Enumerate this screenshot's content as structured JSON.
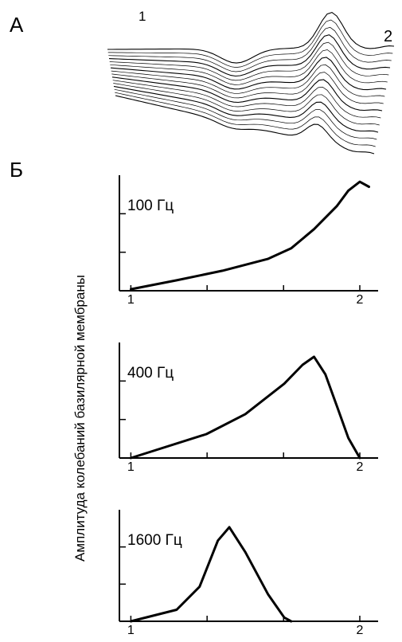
{
  "panel_a": {
    "label": "А",
    "start": "1",
    "end": "2"
  },
  "panel_b_label": "Б",
  "y_label": "Амплитуда колебаний базилярной мембраны",
  "chart_data": [
    {
      "type": "line",
      "annotation": "100 Гц",
      "color": "#000000",
      "x": [
        1,
        1.2,
        1.4,
        1.6,
        1.7,
        1.8,
        1.9,
        1.95,
        2.0,
        2.04
      ],
      "values": [
        0.04,
        0.27,
        0.52,
        0.83,
        1.1,
        1.6,
        2.2,
        2.6,
        2.83,
        2.7
      ],
      "xlim": [
        0.95,
        2.08
      ],
      "xticks": [
        1,
        2
      ],
      "xminor_ticks": [
        1.333,
        1.667
      ],
      "ylim": [
        0,
        3
      ],
      "yminor_ticks": [
        1,
        2
      ]
    },
    {
      "type": "line",
      "annotation": "400 Гц",
      "color": "#000000",
      "x": [
        1,
        1.33,
        1.5,
        1.67,
        1.75,
        1.8,
        1.85,
        1.9,
        1.95,
        2.0
      ],
      "values": [
        0,
        0.62,
        1.14,
        1.93,
        2.42,
        2.63,
        2.17,
        1.35,
        0.52,
        0
      ],
      "xlim": [
        0.95,
        2.08
      ],
      "xticks": [
        1,
        2
      ],
      "xminor_ticks": [
        1.333,
        1.667
      ],
      "ylim": [
        0,
        3
      ],
      "yminor_ticks": [
        1,
        2
      ]
    },
    {
      "type": "line",
      "annotation": "1600 Гц",
      "color": "#000000",
      "x": [
        1,
        1.2,
        1.3,
        1.38,
        1.43,
        1.5,
        1.6,
        1.67,
        1.7
      ],
      "values": [
        0,
        0.31,
        0.93,
        2.17,
        2.53,
        1.86,
        0.72,
        0.1,
        0
      ],
      "xlim": [
        0.95,
        2.08
      ],
      "xticks": [
        1,
        2
      ],
      "xminor_ticks": [
        1.333,
        1.667
      ],
      "ylim": [
        0,
        3
      ],
      "yminor_ticks": [
        1,
        2
      ]
    }
  ]
}
